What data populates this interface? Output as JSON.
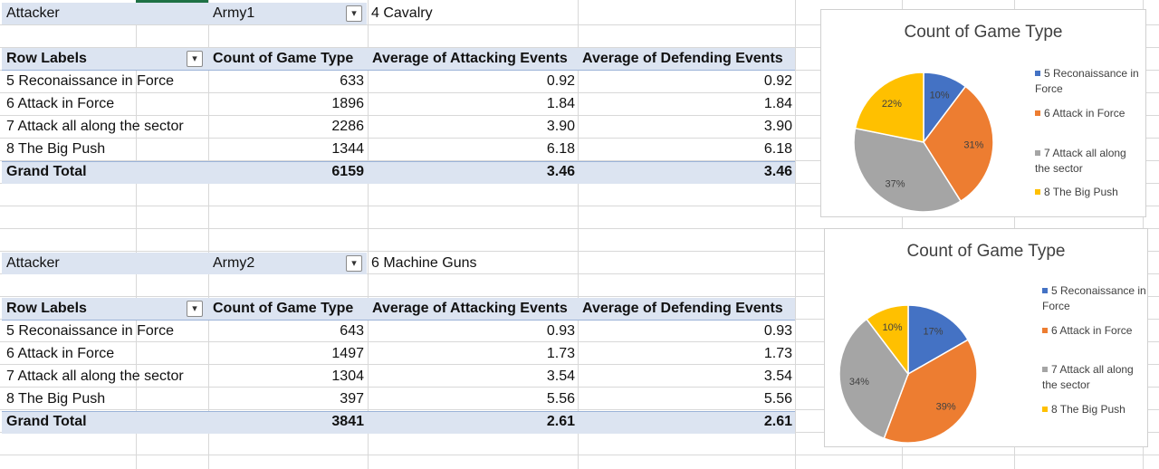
{
  "pivot1": {
    "filter_label": "Attacker",
    "filter_value": "Army1",
    "filter_selection": "4 Cavalry",
    "headers": [
      "Row Labels",
      "Count of Game Type",
      "Average of Attacking Events",
      "Average of Defending Events"
    ],
    "rows": [
      {
        "label": "5 Reconaissance in Force",
        "count": "633",
        "attacking": "0.92",
        "defending": "0.92"
      },
      {
        "label": "6 Attack in Force",
        "count": "1896",
        "attacking": "1.84",
        "defending": "1.84"
      },
      {
        "label": "7 Attack all along the sector",
        "count": "2286",
        "attacking": "3.90",
        "defending": "3.90"
      },
      {
        "label": "8 The Big Push",
        "count": "1344",
        "attacking": "6.18",
        "defending": "6.18"
      }
    ],
    "total": {
      "label": "Grand Total",
      "count": "6159",
      "attacking": "3.46",
      "defending": "3.46"
    }
  },
  "pivot2": {
    "filter_label": "Attacker",
    "filter_value": "Army2",
    "filter_selection": "6 Machine Guns",
    "headers": [
      "Row Labels",
      "Count of Game Type",
      "Average of Attacking Events",
      "Average of Defending Events"
    ],
    "rows": [
      {
        "label": "5 Reconaissance in Force",
        "count": "643",
        "attacking": "0.93",
        "defending": "0.93"
      },
      {
        "label": "6 Attack in Force",
        "count": "1497",
        "attacking": "1.73",
        "defending": "1.73"
      },
      {
        "label": "7 Attack all along the sector",
        "count": "1304",
        "attacking": "3.54",
        "defending": "3.54"
      },
      {
        "label": "8 The Big Push",
        "count": "397",
        "attacking": "5.56",
        "defending": "5.56"
      }
    ],
    "total": {
      "label": "Grand Total",
      "count": "3841",
      "attacking": "2.61",
      "defending": "2.61"
    }
  },
  "colors": {
    "slice1": "#4472c4",
    "slice2": "#ed7d31",
    "slice3": "#a5a5a5",
    "slice4": "#ffc000",
    "header_band": "#dce4f1"
  },
  "icons": {
    "filter_dropdown": "filter-funnel-icon",
    "row_sort": "sort-dropdown-icon"
  },
  "chart_data": [
    {
      "type": "pie",
      "title": "Count of Game Type",
      "categories": [
        "5 Reconaissance in Force",
        "6 Attack in Force",
        "7 Attack all along the sector",
        "8 The Big Push"
      ],
      "values": [
        633,
        1896,
        2286,
        1344
      ],
      "labels": [
        "10%",
        "31%",
        "37%",
        "22%"
      ],
      "legend": "right"
    },
    {
      "type": "pie",
      "title": "Count of Game Type",
      "categories": [
        "5 Reconaissance in Force",
        "6 Attack in Force",
        "7 Attack all along the sector",
        "8 The Big Push"
      ],
      "values": [
        643,
        1497,
        1304,
        397
      ],
      "labels": [
        "17%",
        "39%",
        "34%",
        "10%"
      ],
      "legend": "right"
    }
  ]
}
